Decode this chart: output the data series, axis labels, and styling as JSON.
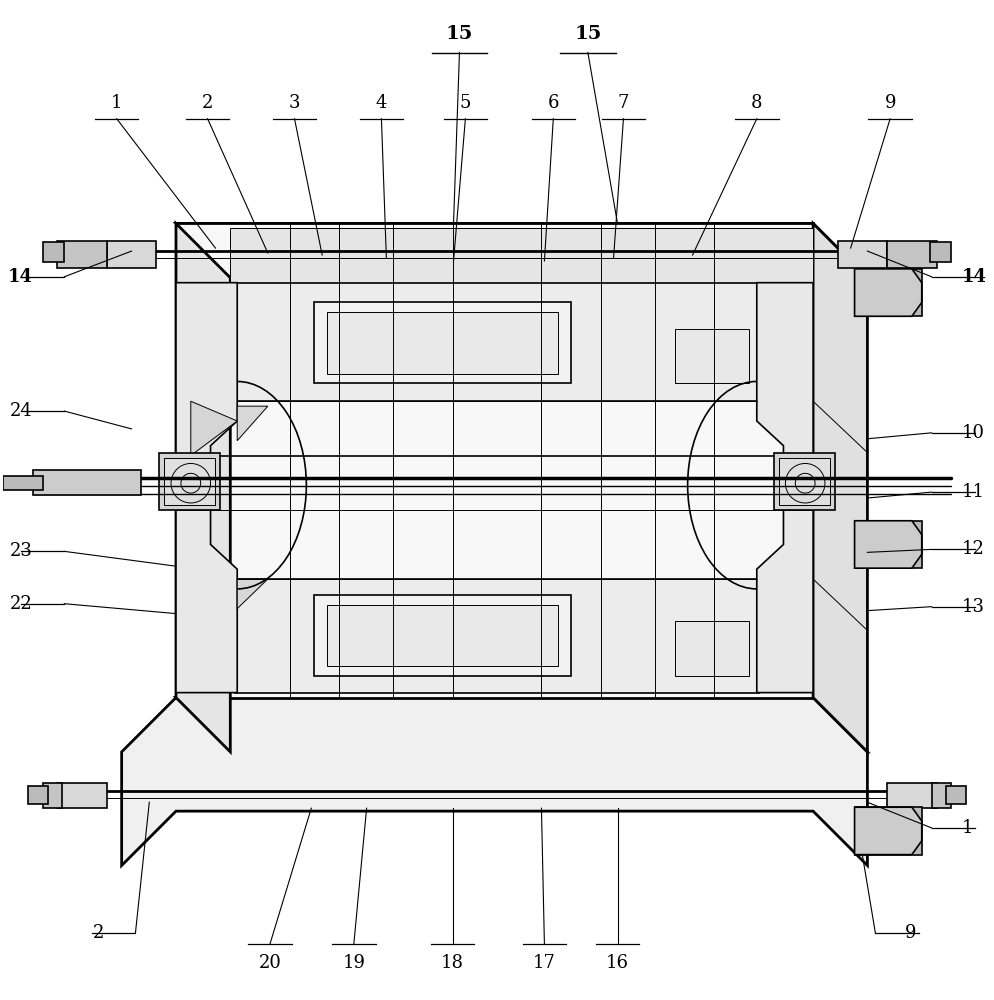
{
  "bg_color": "#ffffff",
  "line_color": "#000000",
  "label_color": "#000000",
  "fig_width": 9.94,
  "fig_height": 10.0,
  "dpi": 100
}
